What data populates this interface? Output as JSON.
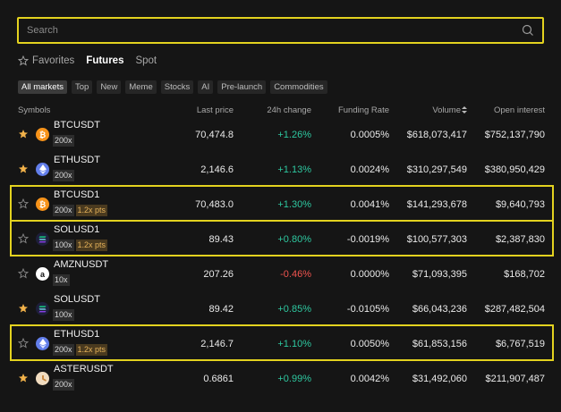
{
  "search": {
    "placeholder": "Search"
  },
  "tabs": [
    {
      "label": "Favorites",
      "icon": "star-outline-icon",
      "active": false
    },
    {
      "label": "Futures",
      "active": true
    },
    {
      "label": "Spot",
      "active": false
    }
  ],
  "filters": [
    "All markets",
    "Top",
    "New",
    "Meme",
    "Stocks",
    "AI",
    "Pre-launch",
    "Commodities"
  ],
  "columns": {
    "symbols": "Symbols",
    "last_price": "Last price",
    "change": "24h change",
    "funding": "Funding Rate",
    "volume": "Volume",
    "open_interest": "Open interest"
  },
  "colors": {
    "accent_highlight": "#e3d21f",
    "positive": "#2ec8a0",
    "negative": "#f0544f",
    "favorite_star": "#f2b24a"
  },
  "rows": [
    {
      "symbol": "BTCUSDT",
      "coin": "btc",
      "favorite": true,
      "leverage": "200x",
      "pts": "",
      "price": "70,474.8",
      "change": "+1.26%",
      "dir": "pos",
      "funding": "0.0005%",
      "volume": "$618,073,417",
      "oi": "$752,137,790",
      "highlight": false
    },
    {
      "symbol": "ETHUSDT",
      "coin": "eth",
      "favorite": true,
      "leverage": "200x",
      "pts": "",
      "price": "2,146.6",
      "change": "+1.13%",
      "dir": "pos",
      "funding": "0.0024%",
      "volume": "$310,297,549",
      "oi": "$380,950,429",
      "highlight": false
    },
    {
      "symbol": "BTCUSD1",
      "coin": "btc",
      "favorite": false,
      "leverage": "200x",
      "pts": "1.2x pts",
      "price": "70,483.0",
      "change": "+1.30%",
      "dir": "pos",
      "funding": "0.0041%",
      "volume": "$141,293,678",
      "oi": "$9,640,793",
      "highlight": true
    },
    {
      "symbol": "SOLUSD1",
      "coin": "sol",
      "favorite": false,
      "leverage": "100x",
      "pts": "1.2x pts",
      "price": "89.43",
      "change": "+0.80%",
      "dir": "pos",
      "funding": "-0.0019%",
      "volume": "$100,577,303",
      "oi": "$2,387,830",
      "highlight": true
    },
    {
      "symbol": "AMZNUSDT",
      "coin": "amzn",
      "favorite": false,
      "leverage": "10x",
      "pts": "",
      "price": "207.26",
      "change": "-0.46%",
      "dir": "neg",
      "funding": "0.0000%",
      "volume": "$71,093,395",
      "oi": "$168,702",
      "highlight": false
    },
    {
      "symbol": "SOLUSDT",
      "coin": "sol",
      "favorite": true,
      "leverage": "100x",
      "pts": "",
      "price": "89.42",
      "change": "+0.85%",
      "dir": "pos",
      "funding": "-0.0105%",
      "volume": "$66,043,236",
      "oi": "$287,482,504",
      "highlight": false
    },
    {
      "symbol": "ETHUSD1",
      "coin": "eth",
      "favorite": false,
      "leverage": "200x",
      "pts": "1.2x pts",
      "price": "2,146.7",
      "change": "+1.10%",
      "dir": "pos",
      "funding": "0.0050%",
      "volume": "$61,853,156",
      "oi": "$6,767,519",
      "highlight": true
    },
    {
      "symbol": "ASTERUSDT",
      "coin": "aster",
      "favorite": true,
      "leverage": "200x",
      "pts": "",
      "price": "0.6861",
      "change": "+0.99%",
      "dir": "pos",
      "funding": "0.0042%",
      "volume": "$31,492,060",
      "oi": "$211,907,487",
      "highlight": false
    }
  ]
}
